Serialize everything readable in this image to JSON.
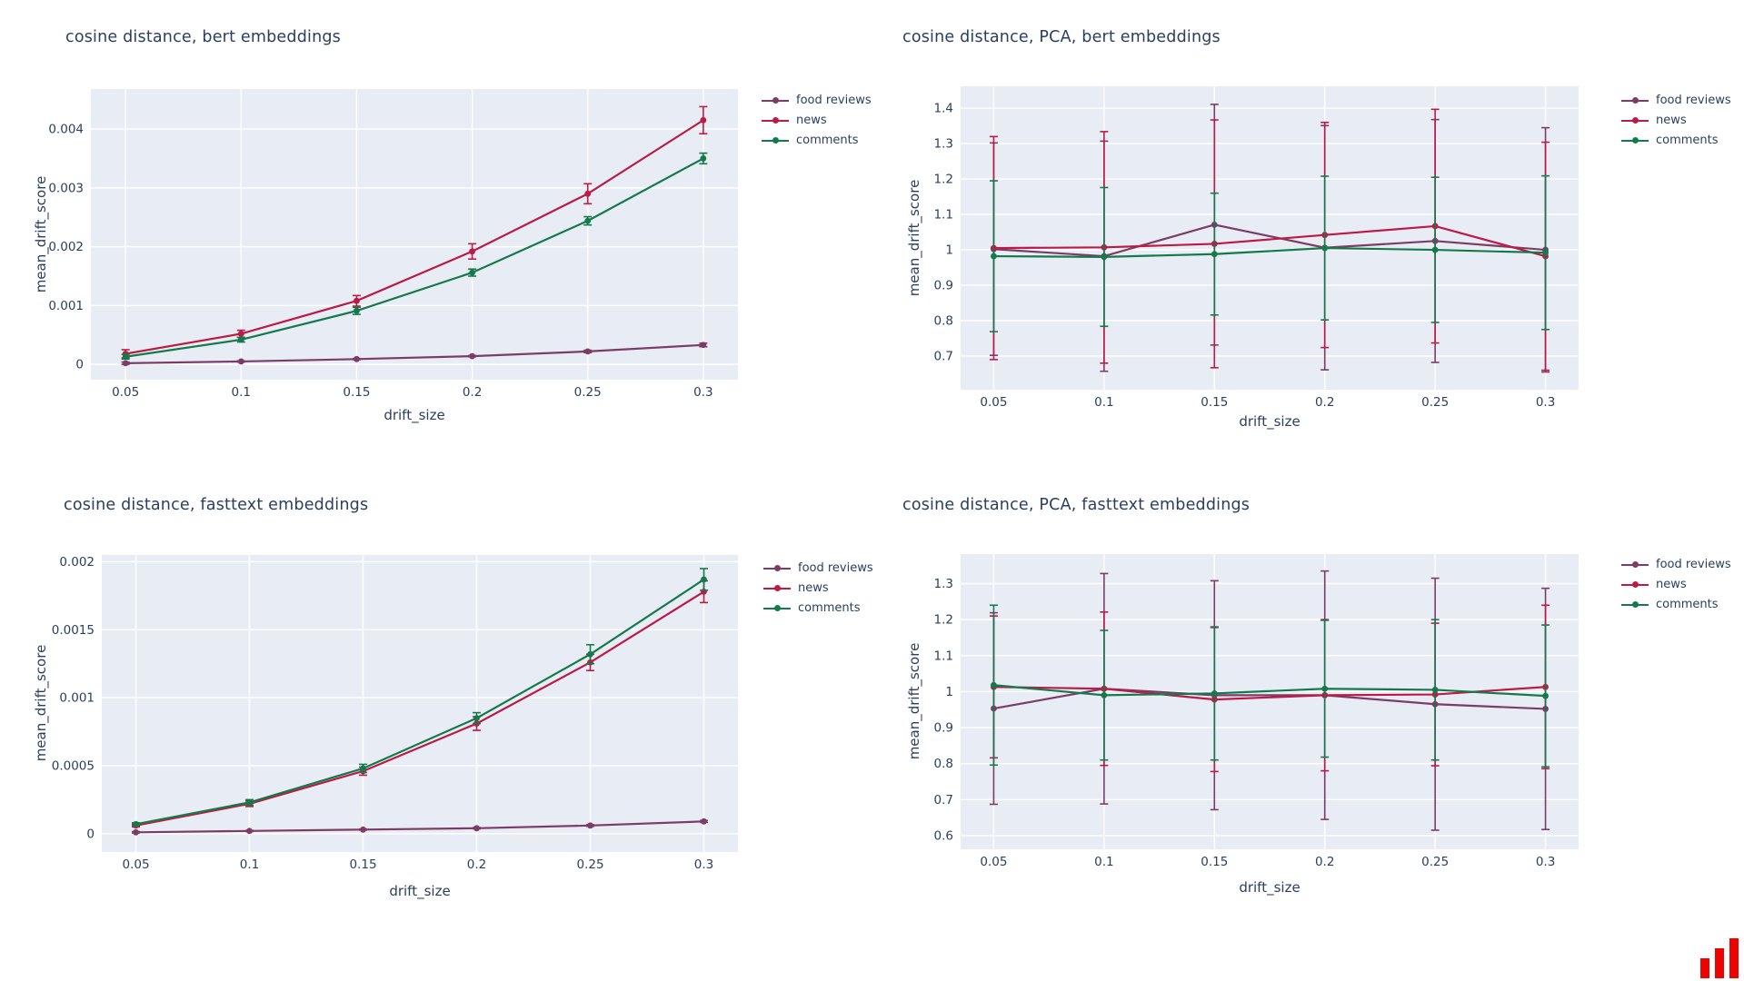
{
  "page": {
    "background": "#ffffff",
    "text_color": "#2a3f5f",
    "plot_background": "#e8ecf5",
    "grid_color": "#ffffff"
  },
  "logo": {
    "name": "ascending-red-bars-logo",
    "color": "#ec0400"
  },
  "series_colors": {
    "food reviews": "#7d3c66",
    "news": "#bb1b45",
    "comments": "#157a4b"
  },
  "chart_data": [
    {
      "type": "line",
      "title": "cosine distance, bert embeddings",
      "xlabel": "drift_size",
      "ylabel": "mean_drift_score",
      "x": [
        0.05,
        0.1,
        0.15,
        0.2,
        0.25,
        0.3
      ],
      "xtick_labels": [
        "0.05",
        "0.1",
        "0.15",
        "0.2",
        "0.25",
        "0.3"
      ],
      "ytick_values": [
        0,
        0.001,
        0.002,
        0.003,
        0.004
      ],
      "ytick_labels": [
        "0",
        "0.001",
        "0.002",
        "0.003",
        "0.004"
      ],
      "xlim": [
        0.035,
        0.315
      ],
      "ylim": [
        -0.00026,
        0.00468
      ],
      "grid": true,
      "error_bars": true,
      "legend_position": "right",
      "series": [
        {
          "name": "food reviews",
          "color": "#7d3c66",
          "values": [
            2e-05,
            5e-05,
            9e-05,
            0.00014,
            0.00022,
            0.00033
          ],
          "errors": [
            2e-05,
            1e-05,
            1e-05,
            1e-05,
            2e-05,
            3e-05
          ]
        },
        {
          "name": "news",
          "color": "#bb1b45",
          "values": [
            0.00018,
            0.00052,
            0.00108,
            0.00192,
            0.0029,
            0.00415
          ],
          "errors": [
            7e-05,
            6e-05,
            9e-05,
            0.00013,
            0.00017,
            0.00023
          ]
        },
        {
          "name": "comments",
          "color": "#157a4b",
          "values": [
            0.00013,
            0.00042,
            0.00091,
            0.00156,
            0.00244,
            0.0035
          ],
          "errors": [
            4e-05,
            4e-05,
            6e-05,
            6e-05,
            7e-05,
            9e-05
          ]
        }
      ]
    },
    {
      "type": "line",
      "title": "cosine distance, PCA, bert embeddings",
      "xlabel": "drift_size",
      "ylabel": "mean_drift_score",
      "x": [
        0.05,
        0.1,
        0.15,
        0.2,
        0.25,
        0.3
      ],
      "xtick_labels": [
        "0.05",
        "0.1",
        "0.15",
        "0.2",
        "0.25",
        "0.3"
      ],
      "ytick_values": [
        0.7,
        0.8,
        0.9,
        1,
        1.1,
        1.2,
        1.3,
        1.4
      ],
      "ytick_labels": [
        "0.7",
        "0.8",
        "0.9",
        "1",
        "1.1",
        "1.2",
        "1.3",
        "1.4"
      ],
      "xlim": [
        0.035,
        0.315
      ],
      "ylim": [
        0.605,
        1.462
      ],
      "grid": true,
      "error_bars": true,
      "legend_position": "right",
      "series": [
        {
          "name": "food reviews",
          "color": "#7d3c66",
          "values": [
            1.002,
            0.982,
            1.071,
            1.006,
            1.025,
            1.0
          ],
          "errors": [
            0.3,
            0.325,
            0.34,
            0.345,
            0.343,
            0.345
          ]
        },
        {
          "name": "news",
          "color": "#bb1b45",
          "values": [
            1.005,
            1.007,
            1.017,
            1.042,
            1.067,
            0.982
          ],
          "errors": [
            0.315,
            0.327,
            0.35,
            0.318,
            0.33,
            0.322
          ]
        },
        {
          "name": "comments",
          "color": "#157a4b",
          "values": [
            0.982,
            0.98,
            0.988,
            1.005,
            1.0,
            0.992
          ],
          "errors": [
            0.213,
            0.196,
            0.172,
            0.203,
            0.205,
            0.217
          ]
        }
      ]
    },
    {
      "type": "line",
      "title": "cosine distance, fasttext embeddings",
      "xlabel": "drift_size",
      "ylabel": "mean_drift_score",
      "x": [
        0.05,
        0.1,
        0.15,
        0.2,
        0.25,
        0.3
      ],
      "xtick_labels": [
        "0.05",
        "0.1",
        "0.15",
        "0.2",
        "0.25",
        "0.3"
      ],
      "ytick_values": [
        0,
        0.0005,
        0.001,
        0.0015,
        0.002
      ],
      "ytick_labels": [
        "0",
        "0.0005",
        "0.001",
        "0.0015",
        "0.002"
      ],
      "xlim": [
        0.035,
        0.315
      ],
      "ylim": [
        -0.000135,
        0.00205
      ],
      "grid": true,
      "error_bars": true,
      "legend_position": "right",
      "series": [
        {
          "name": "food reviews",
          "color": "#7d3c66",
          "values": [
            1e-05,
            2e-05,
            3e-05,
            4e-05,
            6e-05,
            9e-05
          ],
          "errors": [
            5e-06,
            4e-06,
            4e-06,
            5e-06,
            6e-06,
            7e-06
          ]
        },
        {
          "name": "news",
          "color": "#bb1b45",
          "values": [
            6e-05,
            0.00022,
            0.00046,
            0.00081,
            0.00126,
            0.00178
          ],
          "errors": [
            1e-05,
            2e-05,
            3e-05,
            5e-05,
            6e-05,
            8e-05
          ]
        },
        {
          "name": "comments",
          "color": "#157a4b",
          "values": [
            7e-05,
            0.00023,
            0.00048,
            0.00085,
            0.00132,
            0.00187
          ],
          "errors": [
            1e-05,
            2e-05,
            3e-05,
            4e-05,
            7e-05,
            8e-05
          ]
        }
      ]
    },
    {
      "type": "line",
      "title": "cosine distance, PCA, fasttext embeddings",
      "xlabel": "drift_size",
      "ylabel": "mean_drift_score",
      "x": [
        0.05,
        0.1,
        0.15,
        0.2,
        0.25,
        0.3
      ],
      "xtick_labels": [
        "0.05",
        "0.1",
        "0.15",
        "0.2",
        "0.25",
        "0.3"
      ],
      "ytick_values": [
        0.6,
        0.7,
        0.8,
        0.9,
        1,
        1.1,
        1.2,
        1.3
      ],
      "ytick_labels": [
        "0.6",
        "0.7",
        "0.8",
        "0.9",
        "1",
        "1.1",
        "1.2",
        "1.3"
      ],
      "xlim": [
        0.035,
        0.315
      ],
      "ylim": [
        0.562,
        1.382
      ],
      "grid": true,
      "error_bars": true,
      "legend_position": "right",
      "series": [
        {
          "name": "food reviews",
          "color": "#7d3c66",
          "values": [
            0.953,
            1.008,
            0.99,
            0.99,
            0.965,
            0.952
          ],
          "errors": [
            0.266,
            0.32,
            0.318,
            0.345,
            0.35,
            0.335
          ]
        },
        {
          "name": "news",
          "color": "#bb1b45",
          "values": [
            1.013,
            1.008,
            0.978,
            0.99,
            0.992,
            1.013
          ],
          "errors": [
            0.197,
            0.213,
            0.2,
            0.21,
            0.198,
            0.227
          ]
        },
        {
          "name": "comments",
          "color": "#157a4b",
          "values": [
            1.018,
            0.99,
            0.995,
            1.008,
            1.005,
            0.988
          ],
          "errors": [
            0.222,
            0.18,
            0.185,
            0.19,
            0.195,
            0.197
          ]
        }
      ]
    }
  ]
}
